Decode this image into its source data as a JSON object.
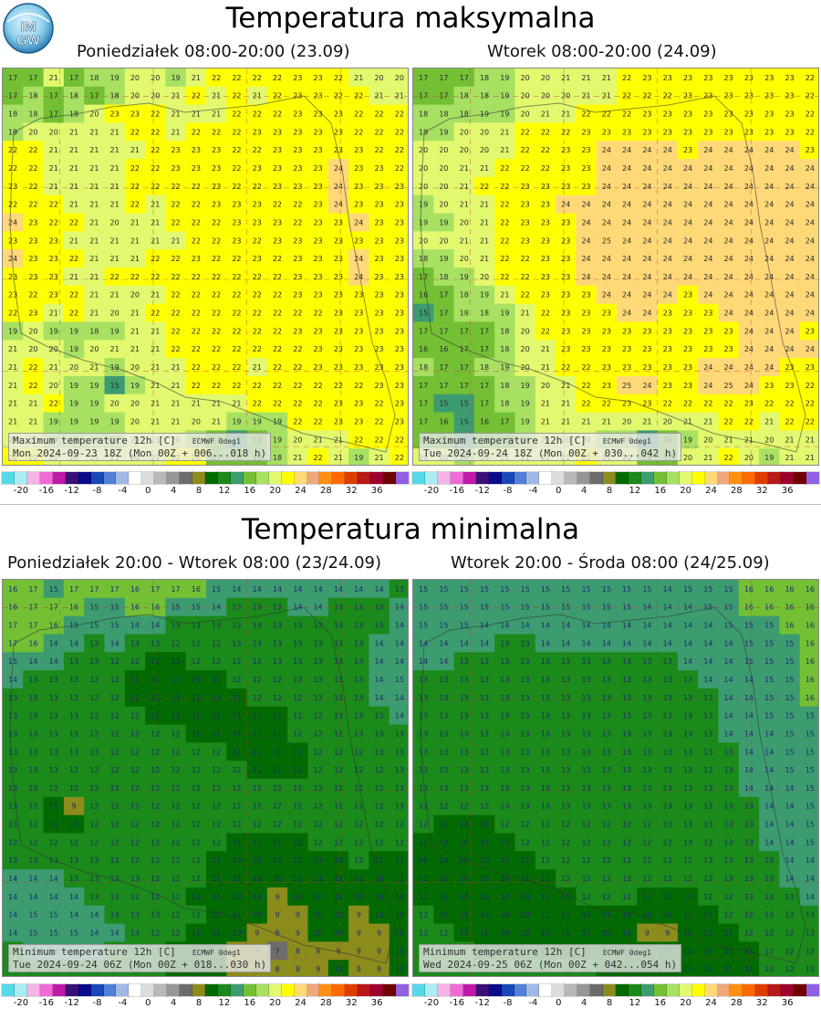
{
  "logo_text": "IMGW",
  "sections": [
    {
      "title": "Temperatura maksymalna",
      "panels": [
        {
          "subtitle": "Poniedziałek 08:00-20:00 (23.09)",
          "info_line1": "Maximum temperature 12h [C]",
          "source": "ECMWF 0deg1",
          "info_line2": "Mon 2024-09-23 18Z (Mon 00Z + 006...018 h)",
          "rows": [
            "17 17 21 17 18 19 20 20 19 21 22 22 22 22 23 23 22 21 20 20",
            "17 18 17 18 17 18 20 20 21 22 21 22 21 22 23 23 22 22 21 21",
            "18 18 17 18 20 23 23 22 21 21 21 22 22 22 23 23 23 22 22 22",
            "19 20 20 21 21 21 22 22 21 22 22 22 23 23 23 23 23 22 22 22",
            "22 22 21 21 21 21 21 22 23 23 23 22 22 23 23 23 23 23 22 22",
            "22 22 21 21 21 21 22 22 23 23 23 22 23 23 23 23 24 23 23 22",
            "23 22 21 21 21 21 22 22 22 22 23 22 22 23 23 23 24 23 23 23",
            "22 22 22 21 21 21 22 21 22 22 23 23 23 22 22 23 24 23 23 23",
            "24 23 22 22 21 20 21 21 22 22 22 23 23 23 22 23 23 24 23 23",
            "23 23 23 21 21 21 21 21 21 22 22 23 22 23 23 23 23 23 23 23",
            "24 23 23 22 21 21 21 22 22 23 22 22 23 22 23 23 23 24 23 23",
            "23 23 23 21 21 22 22 22 22 22 22 22 22 22 23 23 23 24 23 23",
            "23 22 23 22 21 21 20 21 22 22 22 22 22 22 23 23 23 23 23 23",
            "22 23 21 22 21 20 21 22 22 22 22 22 22 22 22 22 23 23 23 23",
            "19 20 19 19 18 19 21 21 22 22 22 22 22 22 23 23 23 23 23 23",
            "21 20 20 19 20 21 21 21 22 22 22 22 22 22 22 23 23 23 23 23",
            "21 22 21 20 21 19 20 21 21 22 22 22 21 22 22 23 23 23 23 23",
            "21 22 20 19 19 15 19 21 21 22 22 22 22 22 22 22 22 22 23 23",
            "21 21 22 19 19 20 20 21 21 21 21 21 22 22 22 22 23 23 22 23",
            "21 21 19 19 19 19 20 21 21 20 21 19 19 19 22 22 23 23 22 23",
            "21 20 19 19 19 19 20 21 20 19 17 15 16 19 20 21 21 22 22 22",
            "22 22 21 20 21 21 20 21 22 22 17 16 16 18 21 22 21 19 21 22"
          ]
        },
        {
          "subtitle": "Wtorek 08:00-20:00 (24.09)",
          "info_line1": "Maximum temperature 12h [C]",
          "source": "ECMWF 0deg1",
          "info_line2": "Tue 2024-09-24 18Z (Mon 00Z + 030...042 h)",
          "rows": [
            "17 17 17 18 19 20 20 21 21 21 22 23 23 23 23 23 23 23 23 22",
            "17 17 18 18 19 20 20 20 21 21 22 22 22 23 23 23 23 23 23 22",
            "18 18 18 19 19 20 21 21 22 22 22 23 23 23 23 23 23 23 23 22",
            "19 19 20 20 21 22 22 22 23 23 23 23 23 23 23 23 23 23 23 22",
            "20 20 20 20 21 22 22 23 23 24 24 24 24 23 24 24 24 24 24 23",
            "20 20 21 21 22 22 22 23 23 24 24 24 24 24 24 24 24 24 24 24",
            "20 20 21 22 22 23 23 23 23 24 24 24 24 24 24 24 24 24 24 24",
            "19 20 21 21 22 23 23 24 24 24 24 24 24 24 24 24 24 24 24 24",
            "19 19 20 21 22 23 23 23 24 24 24 24 24 24 24 24 24 24 24 24",
            "20 20 21 21 22 23 23 23 24 25 24 24 24 24 24 24 24 24 24 24",
            "18 19 20 21 22 22 23 23 24 24 24 24 24 24 24 24 24 24 24 24",
            "17 18 19 20 22 22 23 23 24 24 24 24 24 24 24 24 24 24 24 24",
            "16 17 18 19 21 22 23 23 23 24 24 24 24 23 24 24 24 24 24 24",
            "15 17 18 18 19 21 22 23 23 23 24 24 23 23 23 24 24 24 24 24",
            "17 17 17 17 18 20 22 23 23 23 23 23 23 23 23 23 24 24 24 23",
            "16 16 17 17 18 20 21 23 23 23 23 23 23 23 23 23 24 24 24 24",
            "18 17 17 18 19 20 21 22 22 23 23 23 23 23 24 24 24 24 23 23",
            "17 17 17 17 18 19 20 21 22 23 25 24 23 23 24 25 24 23 23 22",
            "17 15 15 17 18 19 21 21 22 22 23 23 22 22 22 22 23 22 22 22",
            "17 16 15 16 17 19 21 21 21 21 20 21 20 21 21 22 22 21 22 22",
            "17 16 15 16 17 18 20 20 20 19 18 15 16 19 20 21 21 20 21 21",
            "20 20 19 20 21 21 21 21 22 21 20 16 17 20 21 22 20 19 21 21"
          ]
        }
      ]
    },
    {
      "title": "Temperatura minimalna",
      "panels": [
        {
          "subtitle": "Poniedziałek 20:00 - Wtorek 08:00 (23/24.09)",
          "info_line1": "Minimum temperature 12h [C]",
          "source": "ECMWF 0deg1",
          "info_line2": "Tue 2024-09-24 06Z (Mon 00Z + 018...030 h)",
          "rows": [
            "16 17 15 17 17 17 16 17 17 16 15 14 14 14 14 14 14 14 14 13",
            "16 17 17 16 15 15 16 16 15 15 14 13 13 13 14 14 13 13 13 14",
            "17 17 16 15 15 15 14 14 13 13 13 13 13 13 13 13 13 13 13 14",
            "17 16 14 14 13 14 13 13 12 12 12 13 13 13 13 13 13 13 14 14",
            "15 14 14 13 13 12 12 11 11 12 12 12 12 13 13 13 13 13 14 14",
            "14 13 13 13 12 12 11 11 11 11 11 12 12 12 13 13 13 13 14 15",
            "13 13 13 12 12 12 11 11 11 11 11 11 12 12 12 13 13 13 14 14",
            "13 13 13 13 12 12 12 11 11 11 11 11 11 11 12 12 13 13 13 14",
            "13 13 13 13 12 12 12 12 12 11 11 11 11 11 12 12 12 13 13 13",
            "13 13 13 13 13 12 12 12 12 12 12 11 11 11 11 12 12 12 13 13",
            "13 13 13 12 12 12 12 12 12 12 12 12 11 11 11 12 12 12 12 13",
            "13 13 12 12 12 12 12 12 12 12 12 12 12 12 12 12 12 12 12 13",
            "13 12 11 9 12 12 12 12 12 12 12 12 12 12 12 12 12 12 12 13",
            "13 12 11 10 12 12 12 12 12 12 12 12 12 12 12 12 12 12 12 12",
            "12 12 12 12 12 12 12 12 12 12 12 11 11 11 11 12 12 12 12 12",
            "13 13 13 13 13 12 12 12 12 12 11 10 10 11 11 11 11 12 11 11",
            "14 14 14 13 13 13 13 12 12 12 11 11 10 10 11 11 11 11 10 11",
            "14 14 14 14 13 13 12 12 12 11 11 10 10 9 10 10 11 10 10 10",
            "14 15 15 14 14 13 13 13 12 12 11 11 10 9 9 10 10 9 10 10",
            "14 15 15 15 14 14 13 12 12 11 11 10 9 8 9 10 10 9 9 10",
            "13 14 14 14 14 13 13 12 11 11 10 9 8 7 8 9 9 9 9 10",
            "13 13 13 13 13 12 12 12 11 11 10 9 9 8 9 9 10 9 9 10"
          ]
        },
        {
          "subtitle": "Wtorek 20:00 - Środa 08:00 (24/25.09)",
          "info_line1": "Minimum temperature 12h [C]",
          "source": "ECMWF 0deg1",
          "info_line2": "Wed 2024-09-25 06Z (Mon 00Z + 042...054 h)",
          "rows": [
            "15 15 15 15 15 15 15 15 15 15 15 15 14 15 15 15 16 16 16 16",
            "15 15 15 15 15 15 15 15 15 15 15 14 14 14 15 15 16 16 16 16",
            "15 15 15 14 14 14 14 14 14 14 14 14 14 14 14 15 15 15 16 16",
            "14 14 14 14 13 13 14 14 14 14 14 14 14 14 14 14 15 15 15 16",
            "14 14 13 13 13 13 13 13 13 13 13 13 13 14 14 14 15 15 15 16",
            "13 13 13 13 13 13 13 13 13 13 13 13 13 13 14 14 14 15 15 16",
            "13 13 13 13 13 13 13 13 13 13 13 13 13 13 13 14 14 15 15 16",
            "13 13 13 13 13 13 13 13 13 13 13 13 13 13 13 14 14 15 15 15",
            "13 13 13 13 13 13 13 13 13 13 13 13 13 13 13 14 14 14 15 15",
            "13 13 13 13 13 13 13 13 13 13 13 13 13 13 13 13 14 14 15 15",
            "13 13 13 13 13 13 13 13 13 13 13 13 13 13 13 13 14 14 15 15",
            "13 13 13 13 13 13 13 13 13 13 13 13 13 13 13 13 14 14 14 15",
            "12 12 12 12 13 13 13 13 13 13 13 13 13 13 13 13 13 14 14 15",
            "12 11 11 11 12 12 12 12 12 12 12 12 13 13 13 13 13 14 14 15",
            "11 10 10 11 11 12 12 12 12 12 12 12 12 13 13 13 13 14 14 15",
            "10 10 10 10 11 11 12 12 12 12 12 12 12 12 13 13 13 13 14 14",
            "11 10 10 10 10 11 11 12 12 12 12 12 12 12 12 13 13 13 14 14",
            "11 11 10 10 10 10 11 11 12 12 12 11 11 11 12 12 13 13 13 14",
            "12 11 11 10 10 10 11 11 11 11 10 10 10 11 11 12 12 13 13 13",
            "12 12 11 11 10 10 10 11 11 10 10 9 9 10 11 11 12 12 12 13",
            "12 12 12 11 11 11 11 11 11 11 10 10 10 10 11 11 11 12 12 12",
            "13 12 12 12 12 12 12 12 12 11 11 11 11 11 11 11 11 12 12 12"
          ]
        }
      ]
    }
  ],
  "colorbar": {
    "ticks": [
      "-20",
      "-16",
      "-12",
      "-8",
      "-4",
      "0",
      "4",
      "8",
      "12",
      "16",
      "20",
      "24",
      "28",
      "32",
      "36"
    ],
    "colors": [
      "#55d8e8",
      "#a8ecf4",
      "#f6b3e6",
      "#f06ad8",
      "#c01aa8",
      "#3a1078",
      "#0a0a8c",
      "#1848b8",
      "#5080d8",
      "#a0b8e6",
      "#ffffff",
      "#dcdcdc",
      "#b8b8b8",
      "#969696",
      "#6c6c6c",
      "#8c8c1c",
      "#036a03",
      "#1a8a1a",
      "#3c9c70",
      "#74c034",
      "#a8e062",
      "#e2f86e",
      "#ffff00",
      "#ffd878",
      "#f0a878",
      "#ff9010",
      "#ff6a00",
      "#e03c00",
      "#b81818",
      "#a00030",
      "#700000",
      "#9060e0"
    ]
  }
}
